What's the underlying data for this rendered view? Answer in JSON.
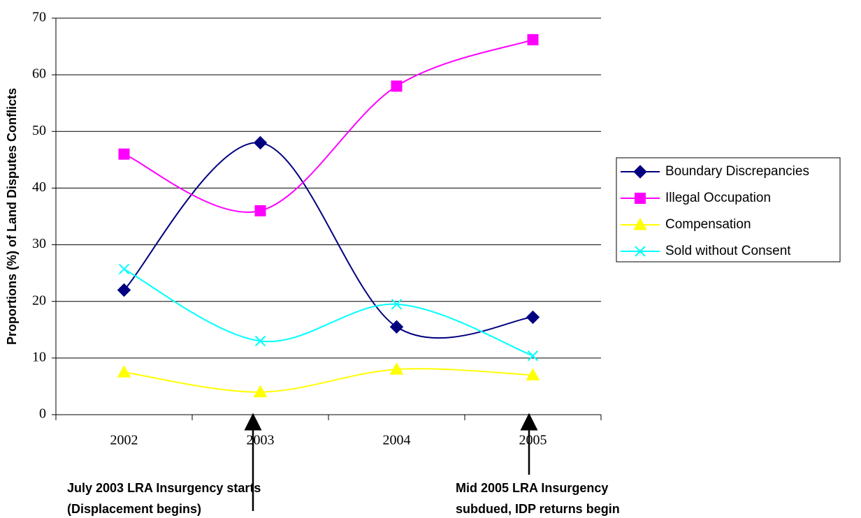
{
  "chart_data": {
    "type": "line",
    "y_label": "Proportions  (%)  of  Land  Disputes Conflicts",
    "categories": [
      "2002",
      "2003",
      "2004",
      "2005"
    ],
    "series": [
      {
        "name": "Boundary Discrepancies",
        "color": "#000080",
        "marker": "diamond",
        "values": [
          22,
          48,
          15.5,
          17.2
        ]
      },
      {
        "name": "Illegal Occupation",
        "color": "#ff00ff",
        "marker": "square",
        "values": [
          46,
          36,
          58,
          66.2
        ]
      },
      {
        "name": "Compensation",
        "color": "#ffff00",
        "marker": "triangle",
        "values": [
          7.5,
          4,
          8,
          7
        ]
      },
      {
        "name": "Sold without Consent",
        "color": "#00ffff",
        "marker": "x",
        "values": [
          25.7,
          13,
          19.5,
          10.4
        ]
      }
    ],
    "ylim": [
      0,
      70
    ],
    "yticks": [
      0,
      10,
      20,
      30,
      40,
      50,
      60,
      70
    ],
    "grid": true,
    "smooth": true,
    "legend": "right",
    "annotations": [
      [
        "July 2003 LRA Insurgency starts",
        "(Displacement begins)"
      ],
      [
        "Mid 2005 LRA Insurgency",
        "subdued, IDP returns begin"
      ]
    ]
  }
}
